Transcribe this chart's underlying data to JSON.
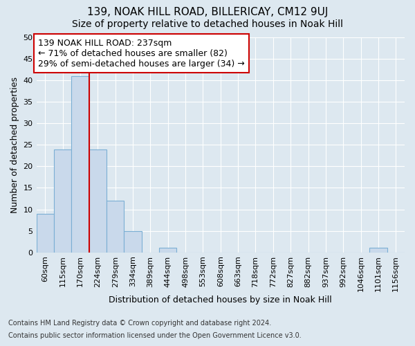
{
  "title": "139, NOAK HILL ROAD, BILLERICAY, CM12 9UJ",
  "subtitle": "Size of property relative to detached houses in Noak Hill",
  "xlabel": "Distribution of detached houses by size in Noak Hill",
  "ylabel": "Number of detached properties",
  "bar_labels": [
    "60sqm",
    "115sqm",
    "170sqm",
    "224sqm",
    "279sqm",
    "334sqm",
    "389sqm",
    "444sqm",
    "498sqm",
    "553sqm",
    "608sqm",
    "663sqm",
    "718sqm",
    "772sqm",
    "827sqm",
    "882sqm",
    "937sqm",
    "992sqm",
    "1046sqm",
    "1101sqm",
    "1156sqm"
  ],
  "bar_values": [
    9,
    24,
    41,
    24,
    12,
    5,
    0,
    1,
    0,
    0,
    0,
    0,
    0,
    0,
    0,
    0,
    0,
    0,
    0,
    1,
    0
  ],
  "bar_color": "#c9d9eb",
  "bar_edge_color": "#7bafd4",
  "vline_position": 2.5,
  "vline_color": "#cc0000",
  "ylim": [
    0,
    50
  ],
  "yticks": [
    0,
    5,
    10,
    15,
    20,
    25,
    30,
    35,
    40,
    45,
    50
  ],
  "annotation_line1": "139 NOAK HILL ROAD: 237sqm",
  "annotation_line2": "← 71% of detached houses are smaller (82)",
  "annotation_line3": "29% of semi-detached houses are larger (34) →",
  "annotation_box_color": "#ffffff",
  "annotation_box_edge_color": "#cc0000",
  "footnote1": "Contains HM Land Registry data © Crown copyright and database right 2024.",
  "footnote2": "Contains public sector information licensed under the Open Government Licence v3.0.",
  "fig_bg_color": "#dde8f0",
  "plot_bg_color": "#dde8f0",
  "grid_color": "#ffffff",
  "title_fontsize": 11,
  "subtitle_fontsize": 10,
  "tick_fontsize": 8,
  "ylabel_fontsize": 9,
  "xlabel_fontsize": 9,
  "annotation_fontsize": 9,
  "footnote_fontsize": 7
}
